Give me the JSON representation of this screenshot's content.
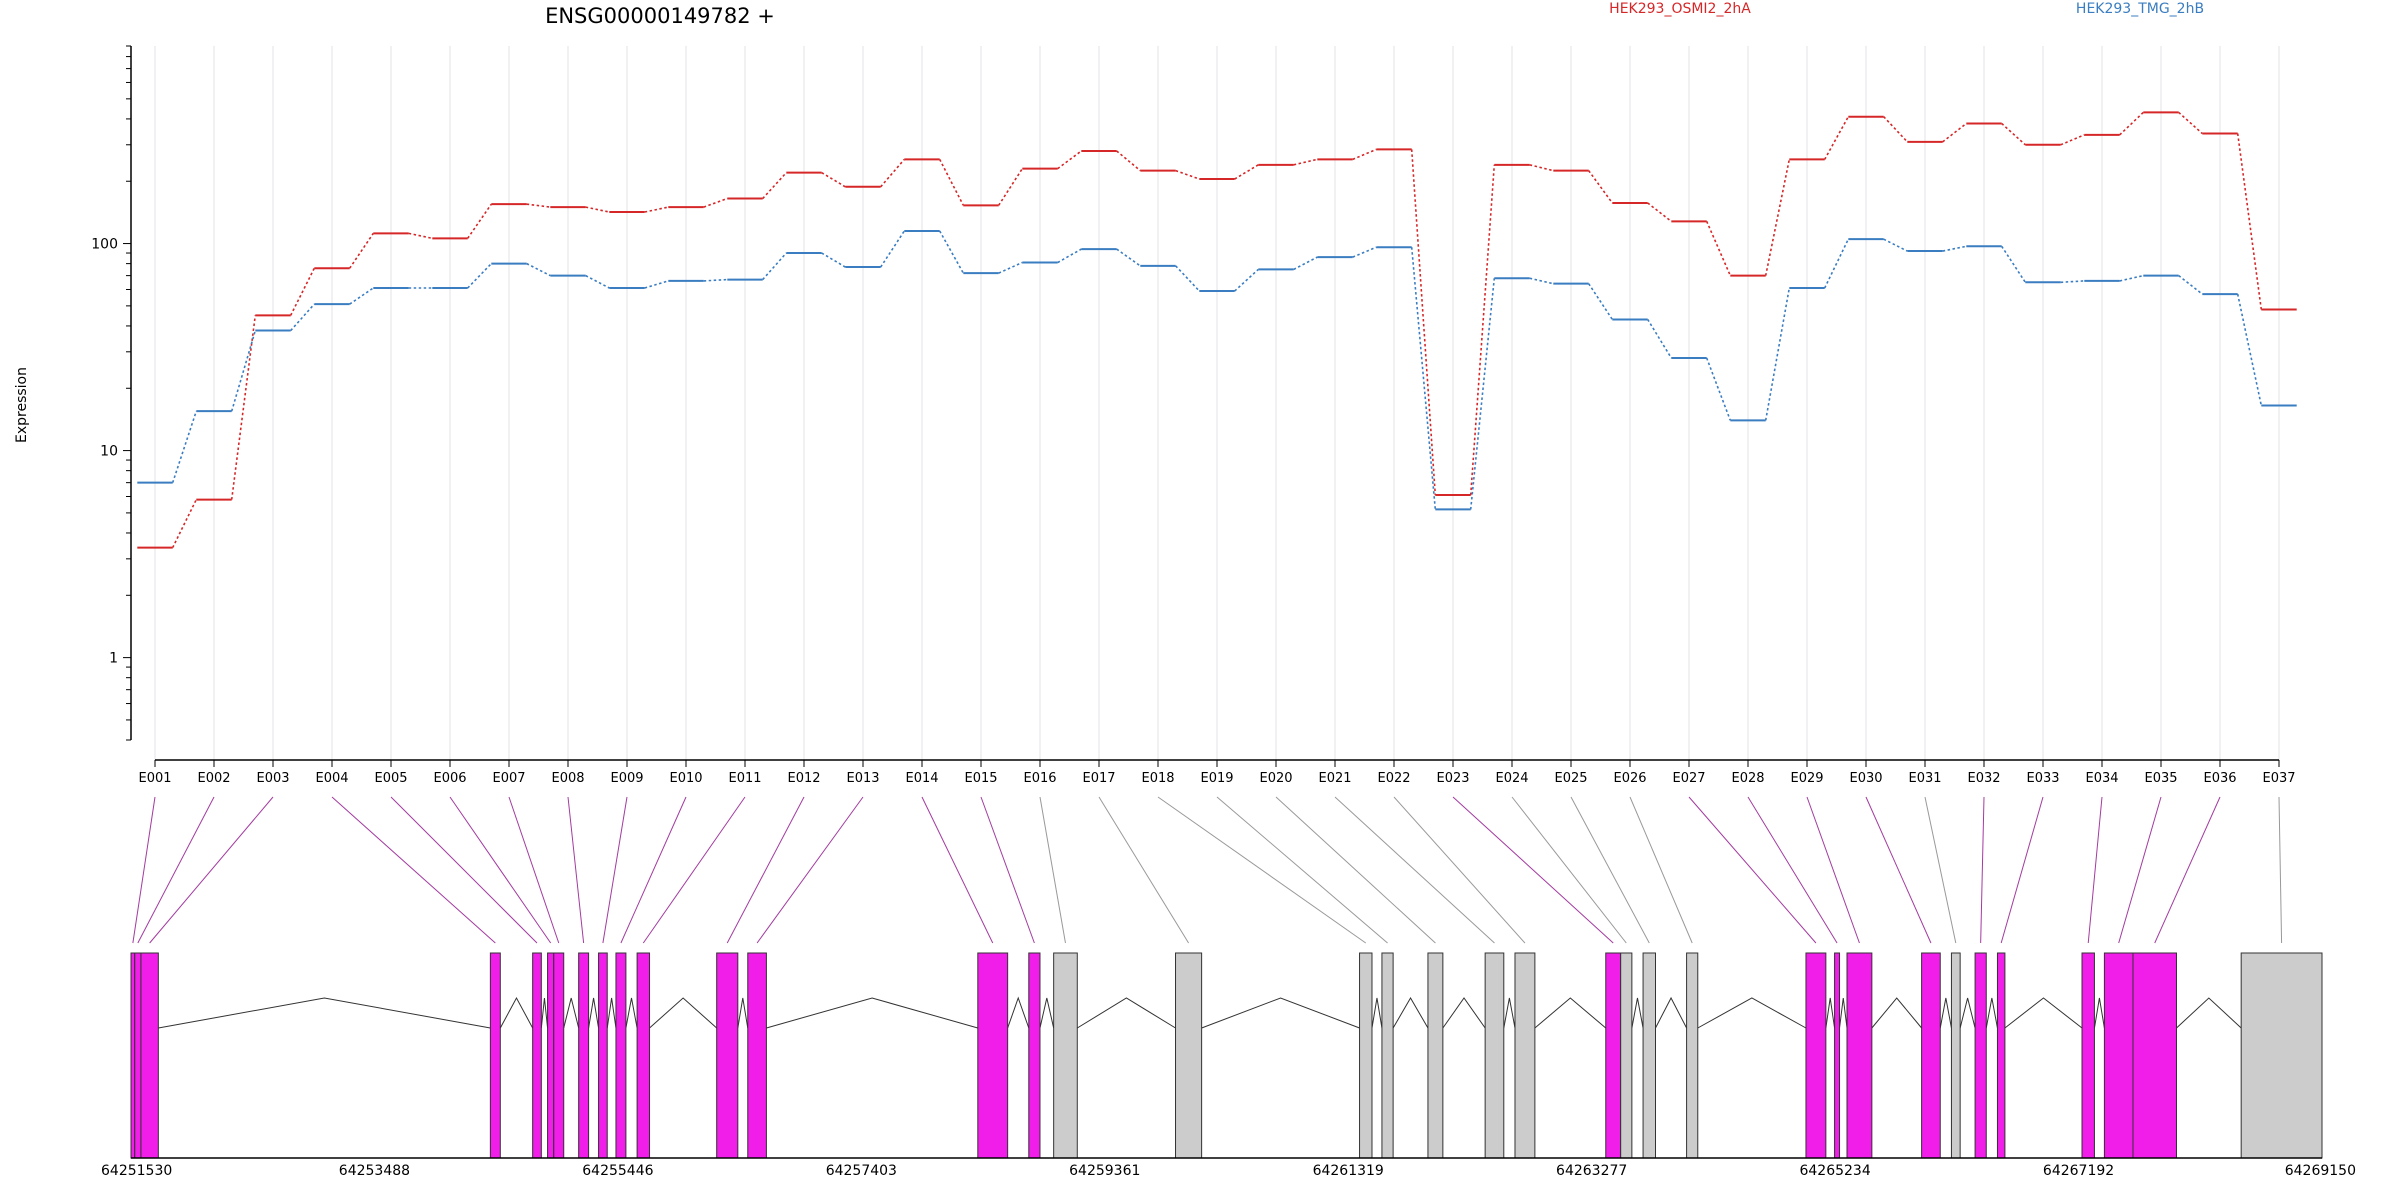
{
  "chart_data": {
    "type": "line",
    "title": "ENSG00000149782 +",
    "ylabel": "Expression",
    "xlabel": "",
    "y_scale": "log",
    "ylim": [
      0.4,
      900
    ],
    "y_ticks": [
      1,
      10,
      100
    ],
    "y_tick_labels": [
      "1",
      "10",
      "100"
    ],
    "grid": "vertical lines at exon positions",
    "legend_placement": "top",
    "categories": [
      "E001",
      "E002",
      "E003",
      "E004",
      "E005",
      "E006",
      "E007",
      "E008",
      "E009",
      "E010",
      "E011",
      "E012",
      "E013",
      "E014",
      "E015",
      "E016",
      "E017",
      "E018",
      "E019",
      "E020",
      "E021",
      "E022",
      "E023",
      "E024",
      "E025",
      "E026",
      "E027",
      "E028",
      "E029",
      "E030",
      "E031",
      "E032",
      "E033",
      "E034",
      "E035",
      "E036",
      "E037"
    ],
    "series": [
      {
        "name": "HEK293_OSMI2_2hA",
        "color": "#d62728",
        "values": [
          3.4,
          5.8,
          45,
          76,
          112,
          106,
          155,
          150,
          142,
          150,
          165,
          220,
          188,
          255,
          153,
          230,
          280,
          225,
          205,
          240,
          255,
          285,
          6.1,
          240,
          225,
          157,
          128,
          70,
          255,
          410,
          310,
          380,
          300,
          335,
          430,
          340,
          48
        ]
      },
      {
        "name": "HEK293_TMG_2hB",
        "color": "#3a7dc1",
        "values": [
          7,
          15.5,
          38,
          51,
          61,
          61,
          80,
          70,
          61,
          66,
          67,
          90,
          77,
          115,
          72,
          81,
          94,
          78,
          59,
          75,
          86,
          96,
          5.2,
          68,
          64,
          43,
          28,
          14,
          61,
          105,
          92,
          97,
          65,
          66,
          70,
          57,
          16.5
        ]
      }
    ],
    "gene_model": {
      "coordinate_labels": [
        "64251530",
        "64253488",
        "64255446",
        "64257403",
        "64259361",
        "64261319",
        "64263277",
        "64265234",
        "64267192",
        "64269150"
      ],
      "range": [
        64251530,
        64269150
      ],
      "colors": {
        "tested": "#f01ee8",
        "untested": "#cccccc",
        "outline": "#333333"
      },
      "exons": [
        {
          "start": 64251530,
          "end": 64251560,
          "status": "tested"
        },
        {
          "start": 64251560,
          "end": 64251610,
          "status": "tested"
        },
        {
          "start": 64251610,
          "end": 64251750,
          "status": "tested"
        },
        {
          "start": 64254420,
          "end": 64254500,
          "status": "tested"
        },
        {
          "start": 64254760,
          "end": 64254830,
          "status": "tested"
        },
        {
          "start": 64254880,
          "end": 64254930,
          "status": "tested"
        },
        {
          "start": 64254930,
          "end": 64255010,
          "status": "tested"
        },
        {
          "start": 64255130,
          "end": 64255210,
          "status": "tested"
        },
        {
          "start": 64255290,
          "end": 64255360,
          "status": "tested"
        },
        {
          "start": 64255430,
          "end": 64255510,
          "status": "tested"
        },
        {
          "start": 64255600,
          "end": 64255700,
          "status": "tested"
        },
        {
          "start": 64256240,
          "end": 64256410,
          "status": "tested"
        },
        {
          "start": 64256490,
          "end": 64256640,
          "status": "tested"
        },
        {
          "start": 64258340,
          "end": 64258580,
          "status": "tested"
        },
        {
          "start": 64258750,
          "end": 64258840,
          "status": "tested"
        },
        {
          "start": 64258950,
          "end": 64259140,
          "status": "untested"
        },
        {
          "start": 64259930,
          "end": 64260140,
          "status": "untested"
        },
        {
          "start": 64261410,
          "end": 64261510,
          "status": "untested"
        },
        {
          "start": 64261590,
          "end": 64261680,
          "status": "untested"
        },
        {
          "start": 64261960,
          "end": 64262080,
          "status": "untested"
        },
        {
          "start": 64262420,
          "end": 64262570,
          "status": "untested"
        },
        {
          "start": 64262660,
          "end": 64262820,
          "status": "untested"
        },
        {
          "start": 64263390,
          "end": 64263510,
          "status": "tested"
        },
        {
          "start": 64263510,
          "end": 64263600,
          "status": "untested"
        },
        {
          "start": 64263690,
          "end": 64263790,
          "status": "untested"
        },
        {
          "start": 64264040,
          "end": 64264130,
          "status": "untested"
        },
        {
          "start": 64265000,
          "end": 64265160,
          "status": "tested"
        },
        {
          "start": 64265230,
          "end": 64265270,
          "status": "tested"
        },
        {
          "start": 64265330,
          "end": 64265530,
          "status": "tested"
        },
        {
          "start": 64265930,
          "end": 64266080,
          "status": "tested"
        },
        {
          "start": 64266170,
          "end": 64266240,
          "status": "untested"
        },
        {
          "start": 64266360,
          "end": 64266450,
          "status": "tested"
        },
        {
          "start": 64266540,
          "end": 64266600,
          "status": "tested"
        },
        {
          "start": 64267220,
          "end": 64267320,
          "status": "tested"
        },
        {
          "start": 64267400,
          "end": 64267630,
          "status": "tested"
        },
        {
          "start": 64267630,
          "end": 64267980,
          "status": "tested"
        },
        {
          "start": 64268500,
          "end": 64269150,
          "status": "untested"
        }
      ]
    }
  }
}
